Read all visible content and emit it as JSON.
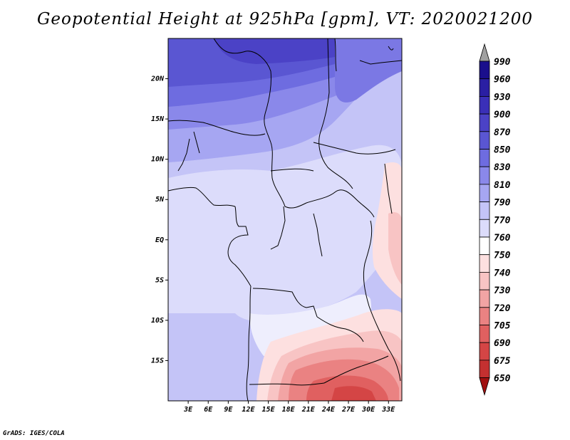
{
  "title": "Geopotential Height at 925hPa [gpm], VT: 2020021200",
  "footer": "GrADS: IGES/COLA",
  "map": {
    "lon_range": [
      0,
      35
    ],
    "lat_range": [
      -20,
      25
    ],
    "lat_ticks": [
      {
        "value": 20,
        "label": "20N"
      },
      {
        "value": 15,
        "label": "15N"
      },
      {
        "value": 10,
        "label": "10N"
      },
      {
        "value": 5,
        "label": "5N"
      },
      {
        "value": 0,
        "label": "EQ"
      },
      {
        "value": -5,
        "label": "5S"
      },
      {
        "value": -10,
        "label": "10S"
      },
      {
        "value": -15,
        "label": "15S"
      }
    ],
    "lon_ticks": [
      {
        "value": 3,
        "label": "3E"
      },
      {
        "value": 6,
        "label": "6E"
      },
      {
        "value": 9,
        "label": "9E"
      },
      {
        "value": 12,
        "label": "12E"
      },
      {
        "value": 15,
        "label": "15E"
      },
      {
        "value": 18,
        "label": "18E"
      },
      {
        "value": 21,
        "label": "21E"
      },
      {
        "value": 24,
        "label": "24E"
      },
      {
        "value": 27,
        "label": "27E"
      },
      {
        "value": 30,
        "label": "30E"
      },
      {
        "value": 33,
        "label": "33E"
      }
    ]
  },
  "colorbar": {
    "levels": [
      {
        "label": "990",
        "color": "#1a0f8c"
      },
      {
        "label": "960",
        "color": "#2a1fa3"
      },
      {
        "label": "930",
        "color": "#3a2fb8"
      },
      {
        "label": "900",
        "color": "#4b42c6"
      },
      {
        "label": "870",
        "color": "#5a56d2"
      },
      {
        "label": "850",
        "color": "#6e6ce0"
      },
      {
        "label": "830",
        "color": "#8a88ea"
      },
      {
        "label": "810",
        "color": "#a6a6f2"
      },
      {
        "label": "790",
        "color": "#c4c4f7"
      },
      {
        "label": "770",
        "color": "#dcdcfb"
      },
      {
        "label": "760",
        "color": "#ffffff"
      },
      {
        "label": "750",
        "color": "#fde0e0"
      },
      {
        "label": "740",
        "color": "#f8c4c4"
      },
      {
        "label": "730",
        "color": "#f2a4a4"
      },
      {
        "label": "720",
        "color": "#ea8282"
      },
      {
        "label": "705",
        "color": "#e06060"
      },
      {
        "label": "690",
        "color": "#d44545"
      },
      {
        "label": "675",
        "color": "#c43030"
      },
      {
        "label": "650",
        "color": "#b01e1e"
      }
    ],
    "top_arrow_color": "#a0a0a0",
    "bottom_arrow_color": "#a01010"
  }
}
